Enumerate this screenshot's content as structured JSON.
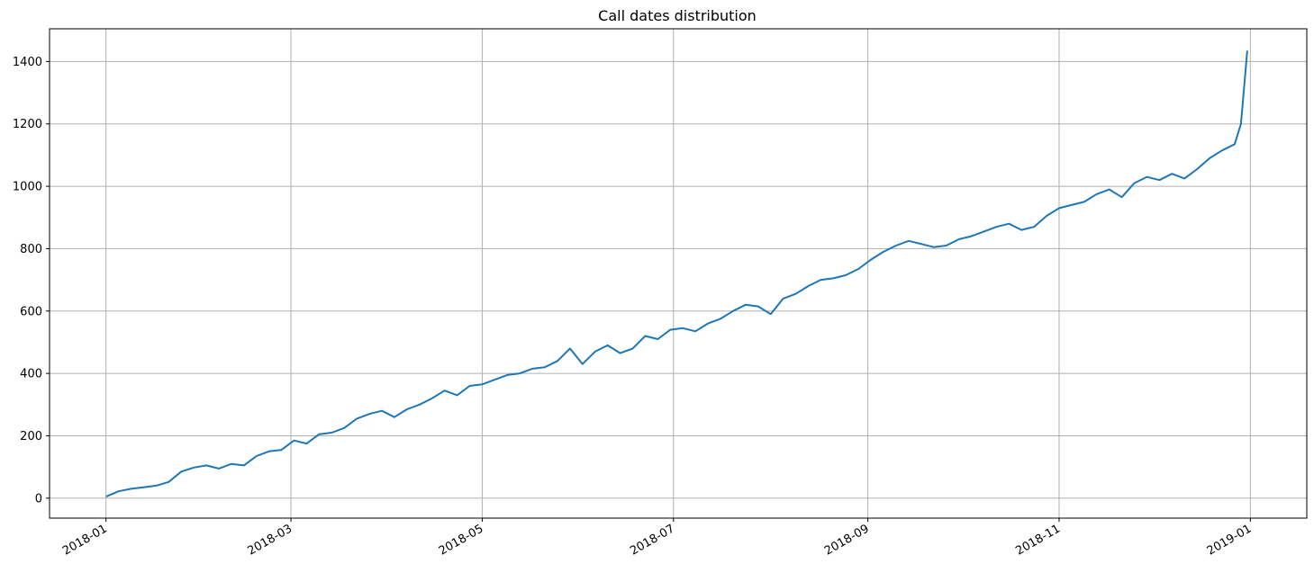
{
  "chart_data": {
    "type": "line",
    "title": "Call dates distribution",
    "xlabel": "",
    "ylabel": "",
    "grid": true,
    "legend": "none",
    "line_color": "#1f77b4",
    "grid_color": "#b0b0b0",
    "xlim": [
      "2017-12-14",
      "2019-01-19"
    ],
    "ylim": [
      -64,
      1505
    ],
    "x_ticks": [
      "2018-01",
      "2018-03",
      "2018-05",
      "2018-07",
      "2018-09",
      "2018-11",
      "2019-01"
    ],
    "y_ticks": [
      0,
      200,
      400,
      600,
      800,
      1000,
      1200,
      1400
    ],
    "x": [
      "2018-01-01",
      "2018-01-05",
      "2018-01-09",
      "2018-01-13",
      "2018-01-17",
      "2018-01-21",
      "2018-01-25",
      "2018-01-29",
      "2018-02-02",
      "2018-02-06",
      "2018-02-10",
      "2018-02-14",
      "2018-02-18",
      "2018-02-22",
      "2018-02-26",
      "2018-03-02",
      "2018-03-06",
      "2018-03-10",
      "2018-03-14",
      "2018-03-18",
      "2018-03-22",
      "2018-03-26",
      "2018-03-30",
      "2018-04-03",
      "2018-04-07",
      "2018-04-11",
      "2018-04-15",
      "2018-04-19",
      "2018-04-23",
      "2018-04-27",
      "2018-05-01",
      "2018-05-05",
      "2018-05-09",
      "2018-05-13",
      "2018-05-17",
      "2018-05-21",
      "2018-05-25",
      "2018-05-29",
      "2018-06-02",
      "2018-06-06",
      "2018-06-10",
      "2018-06-14",
      "2018-06-18",
      "2018-06-22",
      "2018-06-26",
      "2018-06-30",
      "2018-07-04",
      "2018-07-08",
      "2018-07-12",
      "2018-07-16",
      "2018-07-20",
      "2018-07-24",
      "2018-07-28",
      "2018-08-01",
      "2018-08-05",
      "2018-08-09",
      "2018-08-13",
      "2018-08-17",
      "2018-08-21",
      "2018-08-25",
      "2018-08-29",
      "2018-09-02",
      "2018-09-06",
      "2018-09-10",
      "2018-09-14",
      "2018-09-18",
      "2018-09-22",
      "2018-09-26",
      "2018-09-30",
      "2018-10-04",
      "2018-10-08",
      "2018-10-12",
      "2018-10-16",
      "2018-10-20",
      "2018-10-24",
      "2018-10-28",
      "2018-11-01",
      "2018-11-05",
      "2018-11-09",
      "2018-11-13",
      "2018-11-17",
      "2018-11-21",
      "2018-11-25",
      "2018-11-29",
      "2018-12-03",
      "2018-12-07",
      "2018-12-11",
      "2018-12-15",
      "2018-12-19",
      "2018-12-23",
      "2018-12-27",
      "2018-12-29",
      "2018-12-31"
    ],
    "series": [
      {
        "values": [
          5,
          22,
          30,
          35,
          40,
          52,
          85,
          98,
          105,
          95,
          110,
          105,
          135,
          150,
          155,
          185,
          175,
          205,
          210,
          225,
          255,
          270,
          280,
          260,
          285,
          300,
          320,
          345,
          330,
          360,
          365,
          380,
          395,
          400,
          415,
          420,
          440,
          480,
          430,
          470,
          490,
          465,
          480,
          520,
          510,
          540,
          545,
          535,
          560,
          575,
          600,
          620,
          615,
          590,
          640,
          655,
          680,
          700,
          705,
          715,
          735,
          765,
          790,
          810,
          825,
          815,
          805,
          810,
          830,
          840,
          855,
          870,
          880,
          860,
          870,
          905,
          930,
          940,
          950,
          975,
          990,
          965,
          1010,
          1030,
          1020,
          1040,
          1025,
          1055,
          1090,
          1115,
          1135,
          1200,
          1435
        ]
      }
    ]
  }
}
